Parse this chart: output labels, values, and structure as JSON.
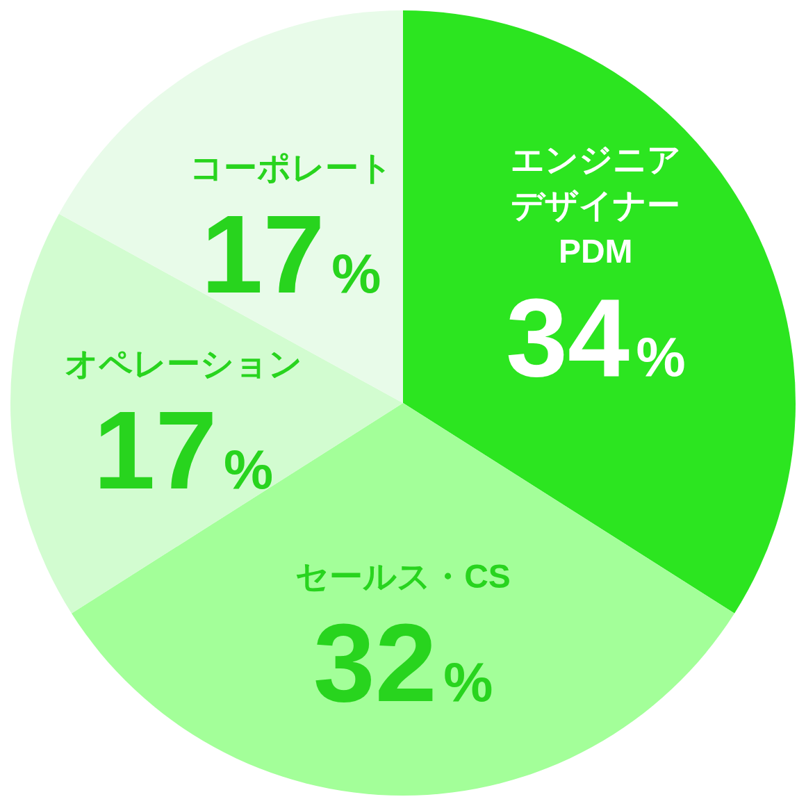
{
  "chart_data": {
    "type": "pie",
    "categories": [
      "エンジニアデザイナーPDM",
      "セールス・CS",
      "オペレーション",
      "コーポレート"
    ],
    "values": [
      34,
      32,
      17,
      17
    ],
    "colors": [
      "#2ce520",
      "#a3ff99",
      "#d2fcd0",
      "#e8fbe9"
    ],
    "value_labels": [
      "34%",
      "32%",
      "17%",
      "17%"
    ]
  }
}
